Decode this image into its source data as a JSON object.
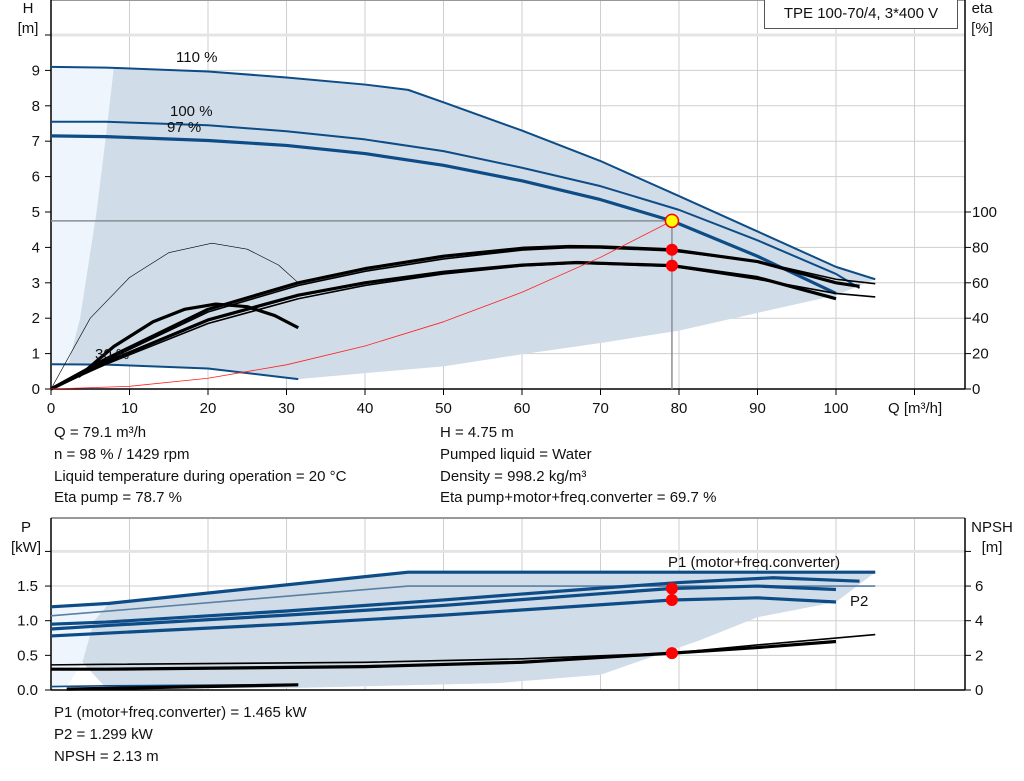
{
  "pump_title": "TPE 100-70/4, 3*400 V",
  "colors": {
    "curve_blue": "#0d4c86",
    "eta_black": "#000000",
    "region_dark": "#d0dce7",
    "region_light": "#eef5fc",
    "system_curve": "#ff2020",
    "marker": "#ff0000",
    "duty_point": "#ffff00",
    "grid": "#cfcfcf"
  },
  "top_info": {
    "left": [
      "Q = 79.1 m³/h",
      "n = 98 % / 1429 rpm",
      "Liquid temperature during operation = 20 °C",
      "Eta pump = 78.7 %"
    ],
    "right": [
      "H = 4.75 m",
      "Pumped liquid = Water",
      "Density = 998.2 kg/m³",
      "Eta pump+motor+freq.converter = 69.7 %"
    ]
  },
  "bottom_info": [
    "P1 (motor+freq.converter) = 1.465 kW",
    "P2 = 1.299 kW",
    "NPSH = 2.13 m"
  ],
  "chart_data": [
    {
      "type": "line",
      "xlabel": "Q [m³/h]",
      "ylabel": [
        "H",
        "[m]"
      ],
      "y2label": [
        "eta",
        "[%]"
      ],
      "xlim": [
        0,
        110
      ],
      "ylim": [
        0,
        10
      ],
      "y2lim": [
        0,
        200
      ],
      "xticks": [
        0,
        10,
        20,
        30,
        40,
        50,
        60,
        70,
        80,
        90,
        100
      ],
      "yticks": [
        0,
        1,
        2,
        3,
        4,
        5,
        6,
        7,
        8,
        9
      ],
      "y2ticks": [
        0,
        20,
        40,
        60,
        80,
        100
      ],
      "grid": true,
      "curve_labels": [
        "110 %",
        "100 %",
        "97 %",
        "30 %"
      ],
      "operating_region": {
        "outer": [
          [
            8,
            9.08
          ],
          [
            20,
            8.97
          ],
          [
            30,
            8.8
          ],
          [
            40,
            8.6
          ],
          [
            45.5,
            8.45
          ],
          [
            50,
            8.1
          ],
          [
            60,
            7.3
          ],
          [
            70,
            6.44
          ],
          [
            80,
            5.45
          ],
          [
            90,
            4.45
          ],
          [
            100,
            3.45
          ],
          [
            105,
            3.1
          ],
          [
            100,
            2.65
          ],
          [
            90,
            2.15
          ],
          [
            80,
            1.65
          ],
          [
            70,
            1.3
          ],
          [
            60,
            0.98
          ],
          [
            50,
            0.64
          ],
          [
            40,
            0.45
          ],
          [
            31.5,
            0.28
          ],
          [
            20,
            0.58
          ],
          [
            7,
            0.69
          ],
          [
            2.2,
            0.69
          ],
          [
            3.7,
            2
          ],
          [
            5.8,
            5
          ],
          [
            7,
            7.15
          ],
          [
            8,
            9.08
          ]
        ],
        "extension": [
          [
            0,
            0.7
          ],
          [
            0,
            9.1
          ],
          [
            8,
            9.1
          ],
          [
            7,
            7.15
          ],
          [
            5.8,
            5
          ],
          [
            3.7,
            2
          ],
          [
            2.2,
            0.69
          ]
        ]
      },
      "series": [
        {
          "axis": "H",
          "label": "110 %",
          "color": "#0d4c86",
          "emphasis": false,
          "points": [
            [
              0,
              9.1
            ],
            [
              7,
              9.08
            ],
            [
              20,
              8.97
            ],
            [
              30,
              8.8
            ],
            [
              40,
              8.6
            ],
            [
              45.5,
              8.45
            ],
            [
              50,
              8.1
            ],
            [
              60,
              7.3
            ],
            [
              70,
              6.44
            ],
            [
              80,
              5.45
            ],
            [
              90,
              4.45
            ],
            [
              100,
              3.45
            ],
            [
              105,
              3.1
            ]
          ]
        },
        {
          "axis": "H",
          "label": "100 %",
          "color": "#0d4c86",
          "emphasis": false,
          "points": [
            [
              0,
              7.55
            ],
            [
              7,
              7.55
            ],
            [
              20,
              7.45
            ],
            [
              30,
              7.28
            ],
            [
              40,
              7.05
            ],
            [
              50,
              6.72
            ],
            [
              60,
              6.25
            ],
            [
              70,
              5.73
            ],
            [
              80,
              5.06
            ],
            [
              90,
              4.2
            ],
            [
              100,
              3.25
            ],
            [
              103,
              2.85
            ]
          ]
        },
        {
          "axis": "H",
          "label": "97 %",
          "color": "#0d4c86",
          "emphasis": true,
          "points": [
            [
              0,
              7.15
            ],
            [
              7,
              7.13
            ],
            [
              20,
              7.02
            ],
            [
              30,
              6.88
            ],
            [
              40,
              6.65
            ],
            [
              50,
              6.32
            ],
            [
              60,
              5.88
            ],
            [
              70,
              5.35
            ],
            [
              79.1,
              4.75
            ],
            [
              90,
              3.75
            ],
            [
              100,
              2.7
            ]
          ]
        },
        {
          "axis": "H",
          "label": "30 %",
          "color": "#0d4c86",
          "emphasis": false,
          "points": [
            [
              0,
              0.7
            ],
            [
              7,
              0.69
            ],
            [
              20,
              0.58
            ],
            [
              31.5,
              0.28
            ]
          ]
        },
        {
          "axis": "eta",
          "color": "#000000",
          "emphasis": true,
          "points": [
            [
              0,
              0
            ],
            [
              7,
              17
            ],
            [
              20,
              45
            ],
            [
              31.5,
              60
            ],
            [
              40,
              68
            ],
            [
              50,
              75
            ],
            [
              60,
              79.5
            ],
            [
              66,
              80.5
            ],
            [
              70,
              80.3
            ],
            [
              79.1,
              78.7
            ],
            [
              90,
              72
            ],
            [
              100,
              60
            ],
            [
              103,
              58
            ]
          ]
        },
        {
          "axis": "eta",
          "color": "#000000",
          "emphasis": false,
          "points": [
            [
              0,
              0
            ],
            [
              7,
              16
            ],
            [
              20,
              43.5
            ],
            [
              31.5,
              58.5
            ],
            [
              40,
              66.5
            ],
            [
              50,
              73.5
            ],
            [
              60,
              78.5
            ],
            [
              66,
              79.8
            ],
            [
              70,
              79.7
            ],
            [
              79.1,
              78
            ],
            [
              90,
              72
            ],
            [
              100,
              62
            ],
            [
              105,
              59.5
            ]
          ]
        },
        {
          "axis": "eta",
          "color": "#000000",
          "emphasis": true,
          "points": [
            [
              0,
              0
            ],
            [
              7,
              15
            ],
            [
              20,
              39
            ],
            [
              31.5,
              53
            ],
            [
              40,
              60
            ],
            [
              50,
              66
            ],
            [
              60,
              70
            ],
            [
              67,
              71.5
            ],
            [
              79.1,
              69.7
            ],
            [
              90,
              63
            ],
            [
              100,
              51
            ]
          ]
        },
        {
          "axis": "eta",
          "color": "#000000",
          "emphasis": false,
          "points": [
            [
              0,
              0
            ],
            [
              7,
              14
            ],
            [
              20,
              37
            ],
            [
              31.5,
              51
            ],
            [
              40,
              58.5
            ],
            [
              50,
              65
            ],
            [
              60,
              69.5
            ],
            [
              67,
              71
            ],
            [
              79.1,
              69.3
            ],
            [
              90,
              62
            ],
            [
              100,
              54
            ],
            [
              105,
              52
            ]
          ]
        },
        {
          "axis": "eta",
          "color": "#000000",
          "emphasis": false,
          "points": [
            [
              0,
              0
            ],
            [
              5,
              40
            ],
            [
              10,
              63
            ],
            [
              15,
              77
            ],
            [
              20.5,
              82.4
            ],
            [
              25,
              79
            ],
            [
              29,
              70
            ],
            [
              31.5,
              60
            ]
          ]
        },
        {
          "axis": "eta",
          "color": "#000000",
          "emphasis": true,
          "points": [
            [
              3.5,
              7
            ],
            [
              8,
              24
            ],
            [
              13,
              38
            ],
            [
              17,
              45
            ],
            [
              21,
              48
            ],
            [
              25,
              46.5
            ],
            [
              28.5,
              41.5
            ],
            [
              31.5,
              34.6
            ]
          ]
        },
        {
          "axis": "H",
          "color": "#ff2020",
          "emphasis": false,
          "system_curve": true,
          "points": [
            [
              0,
              0
            ],
            [
              10,
              0.076
            ],
            [
              20,
              0.304
            ],
            [
              30,
              0.683
            ],
            [
              40,
              1.215
            ],
            [
              50,
              1.898
            ],
            [
              60,
              2.733
            ],
            [
              70,
              3.72
            ],
            [
              79.1,
              4.75
            ]
          ]
        }
      ],
      "duty_point": {
        "Q": 79.1,
        "H": 4.75
      },
      "markers": [
        {
          "axis": "eta",
          "x": 79.1,
          "y": 78.7
        },
        {
          "axis": "eta",
          "x": 79.1,
          "y": 69.7
        }
      ]
    },
    {
      "type": "line",
      "ylabel": [
        "P",
        "[kW]"
      ],
      "y2label": [
        "NPSH",
        "[m]"
      ],
      "xlim": [
        0,
        110
      ],
      "ylim": [
        0,
        2
      ],
      "y2lim": [
        0,
        8
      ],
      "yticks": [
        "0.0",
        "0.5",
        "1.0",
        "1.5"
      ],
      "y2ticks": [
        0,
        2,
        4,
        6
      ],
      "grid": true,
      "curve_labels": [
        "P1 (motor+freq.converter)",
        "P2"
      ],
      "operating_region": {
        "outer": [
          [
            7.4,
            1.25
          ],
          [
            45.5,
            1.7
          ],
          [
            105,
            1.7
          ],
          [
            100,
            1.27
          ],
          [
            90,
            1.05
          ],
          [
            82.7,
            0.72
          ],
          [
            70,
            0.22
          ],
          [
            57,
            0.1
          ],
          [
            31.5,
            0.03
          ],
          [
            7,
            0.03
          ],
          [
            4,
            0.4
          ],
          [
            5.5,
            1.0
          ],
          [
            7.4,
            1.25
          ]
        ],
        "extension": [
          [
            0,
            0
          ],
          [
            0,
            1.2
          ],
          [
            7.4,
            1.25
          ],
          [
            5.5,
            1.0
          ],
          [
            4,
            0.4
          ],
          [
            2,
            0.05
          ]
        ]
      },
      "series": [
        {
          "axis": "P",
          "color": "#0d4c86",
          "emphasis": true,
          "points": [
            [
              0,
              1.2
            ],
            [
              7.4,
              1.25
            ],
            [
              45.5,
              1.7
            ],
            [
              105,
              1.7
            ]
          ]
        },
        {
          "axis": "P",
          "color": "#5a7fa5",
          "emphasis": false,
          "points": [
            [
              0,
              1.07
            ],
            [
              45.5,
              1.5
            ],
            [
              105,
              1.5
            ]
          ]
        },
        {
          "axis": "P",
          "label": "P1 (motor+freq.converter)",
          "color": "#0d4c86",
          "emphasis": true,
          "points": [
            [
              0,
              0.95
            ],
            [
              7,
              0.98
            ],
            [
              30,
              1.14
            ],
            [
              50,
              1.3
            ],
            [
              70,
              1.47
            ],
            [
              80,
              1.55
            ],
            [
              92,
              1.62
            ],
            [
              103,
              1.57
            ]
          ]
        },
        {
          "axis": "P",
          "color": "#0d4c86",
          "emphasis": true,
          "points": [
            [
              0,
              0.88
            ],
            [
              7,
              0.93
            ],
            [
              30,
              1.08
            ],
            [
              50,
              1.22
            ],
            [
              70,
              1.39
            ],
            [
              79.1,
              1.465
            ],
            [
              90,
              1.5
            ],
            [
              100,
              1.45
            ]
          ]
        },
        {
          "axis": "P",
          "label": "P2",
          "color": "#0d4c86",
          "emphasis": true,
          "points": [
            [
              0,
              0.78
            ],
            [
              7,
              0.82
            ],
            [
              30,
              0.95
            ],
            [
              50,
              1.08
            ],
            [
              70,
              1.23
            ],
            [
              79.1,
              1.299
            ],
            [
              90,
              1.33
            ],
            [
              100,
              1.27
            ]
          ]
        },
        {
          "axis": "P",
          "color": "#0d4c86",
          "emphasis": false,
          "points": [
            [
              0,
              0.05
            ],
            [
              7,
              0.06
            ],
            [
              31.5,
              0.08
            ]
          ]
        },
        {
          "axis": "NPSH",
          "color": "#000000",
          "emphasis": false,
          "points": [
            [
              0,
              1.45
            ],
            [
              7,
              1.48
            ],
            [
              40,
              1.6
            ],
            [
              60,
              1.8
            ],
            [
              79.1,
              2.13
            ],
            [
              90,
              2.6
            ],
            [
              105,
              3.2
            ]
          ]
        },
        {
          "axis": "NPSH",
          "color": "#000000",
          "emphasis": true,
          "points": [
            [
              0,
              1.2
            ],
            [
              7,
              1.2
            ],
            [
              40,
              1.35
            ],
            [
              60,
              1.6
            ],
            [
              79.1,
              2.13
            ],
            [
              90,
              2.45
            ],
            [
              100,
              2.8
            ]
          ]
        },
        {
          "axis": "NPSH",
          "color": "#000000",
          "emphasis": true,
          "points": [
            [
              2,
              0.05
            ],
            [
              31.5,
              0.3
            ]
          ]
        }
      ],
      "markers": [
        {
          "axis": "P",
          "x": 79.1,
          "y": 1.465
        },
        {
          "axis": "P",
          "x": 79.1,
          "y": 1.299
        },
        {
          "axis": "NPSH",
          "x": 79.1,
          "y": 2.13
        }
      ]
    }
  ]
}
